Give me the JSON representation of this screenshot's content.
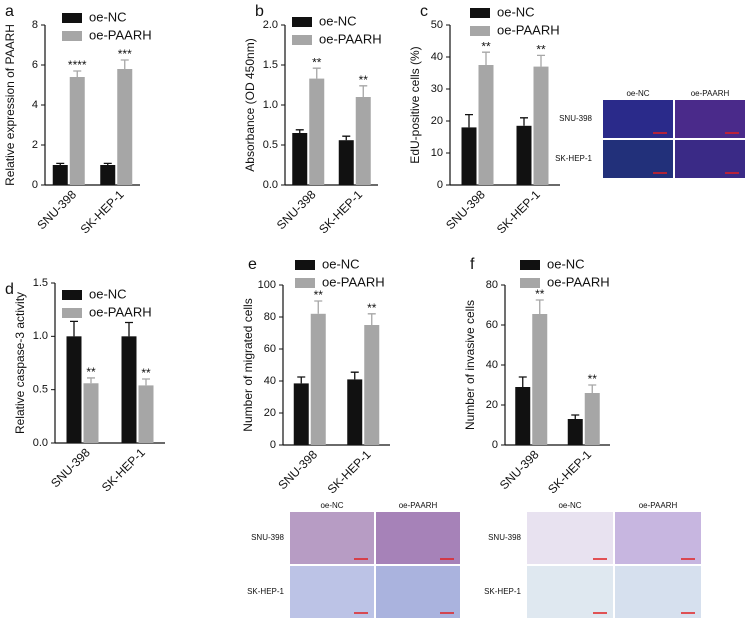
{
  "chart_data": [
    {
      "type": "bar",
      "label": "a",
      "ylabel": "Relative expression of PAARH",
      "categories": [
        "SNU-398",
        "SK-HEP-1"
      ],
      "series": [
        {
          "name": "oe-NC",
          "color": "#111111",
          "values": [
            1.0,
            1.0
          ],
          "errors": [
            0.08,
            0.08
          ]
        },
        {
          "name": "oe-PAARH",
          "color": "#a6a6a6",
          "values": [
            5.4,
            5.8
          ],
          "errors": [
            0.3,
            0.45
          ],
          "annotations": [
            "****",
            "***"
          ]
        }
      ],
      "ylim": [
        0,
        8
      ],
      "yticks": [
        0,
        2,
        4,
        6,
        8
      ]
    },
    {
      "type": "bar",
      "label": "b",
      "ylabel": "Absorbance (OD 450nm)",
      "categories": [
        "SNU-398",
        "SK-HEP-1"
      ],
      "series": [
        {
          "name": "oe-NC",
          "color": "#111111",
          "values": [
            0.65,
            0.56
          ],
          "errors": [
            0.04,
            0.05
          ]
        },
        {
          "name": "oe-PAARH",
          "color": "#a6a6a6",
          "values": [
            1.33,
            1.1
          ],
          "errors": [
            0.13,
            0.14
          ],
          "annotations": [
            "**",
            "**"
          ]
        }
      ],
      "ylim": [
        0,
        2
      ],
      "yticks": [
        {
          "value": 0,
          "label": "0.0"
        },
        0.5,
        {
          "value": 1,
          "label": "1.0"
        },
        1.5,
        {
          "value": 2,
          "label": "2.0"
        }
      ]
    },
    {
      "type": "bar",
      "label": "c",
      "ylabel": "EdU-positive cells (%)",
      "categories": [
        "SNU-398",
        "SK-HEP-1"
      ],
      "series": [
        {
          "name": "oe-NC",
          "color": "#111111",
          "values": [
            18,
            18.5
          ],
          "errors": [
            4,
            2.5
          ]
        },
        {
          "name": "oe-PAARH",
          "color": "#a6a6a6",
          "values": [
            37.5,
            37
          ],
          "errors": [
            4,
            3.5
          ],
          "annotations": [
            "**",
            "**"
          ]
        }
      ],
      "ylim": [
        0,
        50
      ],
      "yticks": [
        0,
        10,
        20,
        30,
        40,
        50
      ],
      "micrograph": {
        "columns": [
          "oe-NC",
          "oe-PAARH"
        ],
        "rows": [
          "SNU-398",
          "SK-HEP-1"
        ]
      }
    },
    {
      "type": "bar",
      "label": "d",
      "ylabel": "Relative caspase-3 activity",
      "categories": [
        "SNU-398",
        "SK-HEP-1"
      ],
      "series": [
        {
          "name": "oe-NC",
          "color": "#111111",
          "values": [
            1.0,
            1.0
          ],
          "errors": [
            0.14,
            0.13
          ]
        },
        {
          "name": "oe-PAARH",
          "color": "#a6a6a6",
          "values": [
            0.56,
            0.54
          ],
          "errors": [
            0.05,
            0.06
          ],
          "annotations": [
            "**",
            "**"
          ]
        }
      ],
      "ylim": [
        0,
        1.5
      ],
      "yticks": [
        {
          "value": 0,
          "label": "0.0"
        },
        0.5,
        {
          "value": 1,
          "label": "1.0"
        },
        1.5
      ]
    },
    {
      "type": "bar",
      "label": "e",
      "ylabel": "Number of migrated cells",
      "categories": [
        "SNU-398",
        "SK-HEP-1"
      ],
      "series": [
        {
          "name": "oe-NC",
          "color": "#111111",
          "values": [
            38.5,
            41
          ],
          "errors": [
            4,
            4.5
          ]
        },
        {
          "name": "oe-PAARH",
          "color": "#a6a6a6",
          "values": [
            82,
            75
          ],
          "errors": [
            8,
            7
          ],
          "annotations": [
            "**",
            "**"
          ]
        }
      ],
      "ylim": [
        0,
        100
      ],
      "yticks": [
        0,
        20,
        40,
        60,
        80,
        100
      ],
      "micrograph": {
        "columns": [
          "oe-NC",
          "oe-PAARH"
        ],
        "rows": [
          "SNU-398",
          "SK-HEP-1"
        ]
      }
    },
    {
      "type": "bar",
      "label": "f",
      "ylabel": "Number of invasive cells",
      "categories": [
        "SNU-398",
        "SK-HEP-1"
      ],
      "series": [
        {
          "name": "oe-NC",
          "color": "#111111",
          "values": [
            29,
            13
          ],
          "errors": [
            5,
            2
          ]
        },
        {
          "name": "oe-PAARH",
          "color": "#a6a6a6",
          "values": [
            65.5,
            26
          ],
          "errors": [
            7,
            4
          ],
          "annotations": [
            "**",
            "**"
          ]
        }
      ],
      "ylim": [
        0,
        80
      ],
      "yticks": [
        0,
        20,
        40,
        60,
        80
      ],
      "micrograph": {
        "columns": [
          "oe-NC",
          "oe-PAARH"
        ],
        "rows": [
          "SNU-398",
          "SK-HEP-1"
        ]
      }
    }
  ]
}
